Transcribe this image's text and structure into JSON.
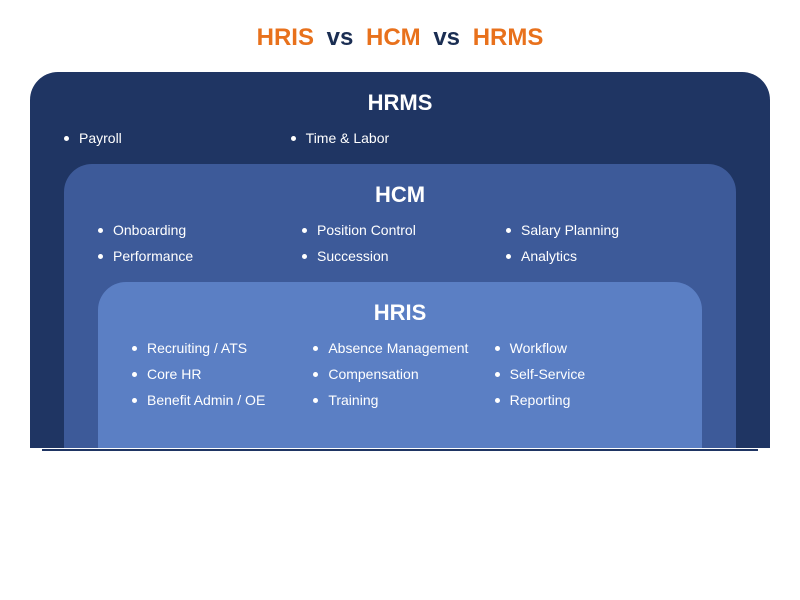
{
  "title": {
    "hris": "HRIS",
    "vs1": "vs",
    "hcm": "HCM",
    "vs2": "vs",
    "hrms": "HRMS",
    "color_orange": "#e8711c",
    "color_navy": "#1a2d52",
    "fontsize": 24
  },
  "layers": {
    "outer": {
      "label": "HRMS",
      "bg": "#1f3563",
      "bullet_color": "#ffffff",
      "items": [
        "Payroll",
        "Time & Labor"
      ]
    },
    "mid": {
      "label": "HCM",
      "bg": "#3d5a99",
      "bullet_color": "#ffffff",
      "items_col1": [
        "Onboarding",
        "Performance"
      ],
      "items_col2": [
        "Position Control",
        "Succession"
      ],
      "items_col3": [
        "Salary Planning",
        "Analytics"
      ]
    },
    "inner": {
      "label": "HRIS",
      "bg": "#5b7fc4",
      "bullet_color": "#ffffff",
      "items_col1": [
        "Recruiting / ATS",
        "Core HR",
        "Benefit Admin / OE"
      ],
      "items_col2": [
        "Absence Management",
        "Compensation",
        "Training"
      ],
      "items_col3": [
        "Workflow",
        "Self-Service",
        "Reporting"
      ]
    }
  },
  "baseline_color": "#1f3563",
  "label_fontsize": 22,
  "item_fontsize": 14,
  "background_color": "#ffffff"
}
